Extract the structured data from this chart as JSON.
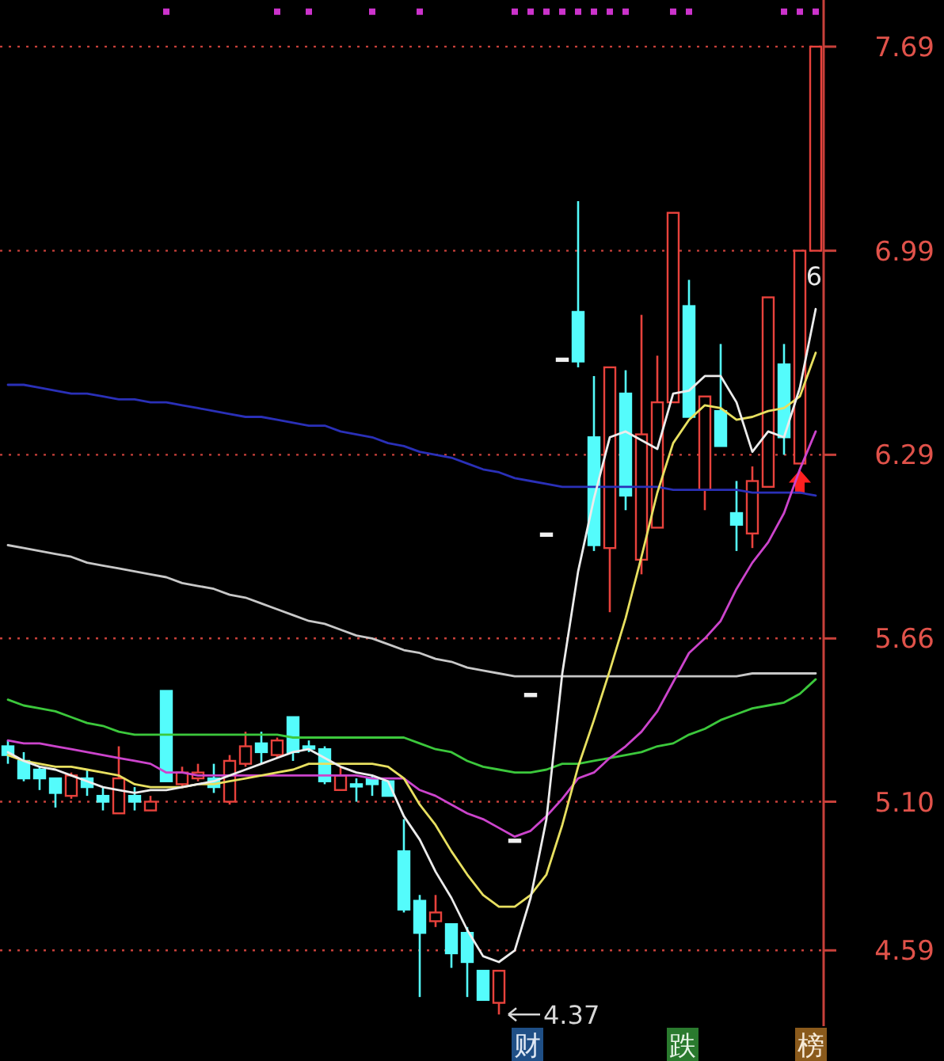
{
  "chart_data": {
    "type": "candlestick",
    "categories": [
      null,
      null,
      null,
      null,
      null,
      null,
      null,
      null,
      null,
      null,
      null,
      null,
      null,
      null,
      null,
      null,
      null,
      null,
      null,
      null,
      null,
      null,
      null,
      null,
      null,
      null,
      null,
      null,
      null,
      null,
      null,
      null,
      null,
      null,
      null,
      null,
      null,
      null,
      null,
      null,
      null,
      null,
      null,
      null,
      null,
      null,
      null,
      null,
      null,
      null,
      null,
      null
    ],
    "ohlc": [
      [
        5.29,
        5.31,
        5.23,
        5.26
      ],
      [
        5.24,
        5.27,
        5.17,
        5.18
      ],
      [
        5.21,
        5.22,
        5.14,
        5.18
      ],
      [
        5.18,
        5.18,
        5.08,
        5.13
      ],
      [
        5.12,
        5.2,
        5.11,
        5.19
      ],
      [
        5.18,
        5.21,
        5.12,
        5.15
      ],
      [
        5.12,
        5.15,
        5.07,
        5.1
      ],
      [
        5.06,
        5.29,
        5.06,
        5.18
      ],
      [
        5.12,
        5.15,
        5.07,
        5.1
      ],
      [
        5.07,
        5.12,
        5.07,
        5.1
      ],
      [
        5.48,
        5.48,
        5.17,
        5.17
      ],
      [
        5.16,
        5.22,
        5.15,
        5.2
      ],
      [
        5.18,
        5.23,
        5.17,
        5.2
      ],
      [
        5.18,
        5.23,
        5.13,
        5.15
      ],
      [
        5.1,
        5.26,
        5.09,
        5.24
      ],
      [
        5.23,
        5.34,
        5.22,
        5.29
      ],
      [
        5.3,
        5.34,
        5.23,
        5.27
      ],
      [
        5.26,
        5.32,
        5.25,
        5.31
      ],
      [
        5.39,
        5.39,
        5.24,
        5.27
      ],
      [
        5.29,
        5.31,
        5.27,
        5.29
      ],
      [
        5.28,
        5.29,
        5.16,
        5.17
      ],
      [
        5.14,
        5.22,
        5.14,
        5.19
      ],
      [
        5.16,
        5.18,
        5.1,
        5.16
      ],
      [
        5.18,
        5.19,
        5.12,
        5.16
      ],
      [
        5.17,
        5.17,
        5.12,
        5.12
      ],
      [
        4.93,
        5.04,
        4.72,
        4.73
      ],
      [
        4.76,
        4.78,
        4.43,
        4.65
      ],
      [
        4.69,
        4.78,
        4.67,
        4.72
      ],
      [
        4.68,
        4.68,
        4.53,
        4.58
      ],
      [
        4.65,
        4.67,
        4.43,
        4.55
      ],
      [
        4.52,
        4.52,
        4.42,
        4.42
      ],
      [
        4.41,
        4.52,
        4.37,
        4.52
      ],
      [
        4.97,
        4.97,
        4.97,
        4.97
      ],
      [
        5.47,
        5.47,
        5.47,
        5.47
      ],
      [
        6.02,
        6.02,
        6.02,
        6.02
      ],
      [
        6.62,
        6.62,
        6.62,
        6.62
      ],
      [
        6.78,
        7.16,
        6.59,
        6.61
      ],
      [
        6.35,
        6.56,
        5.96,
        5.98
      ],
      [
        5.97,
        6.59,
        5.75,
        6.59
      ],
      [
        6.5,
        6.58,
        6.1,
        6.15
      ],
      [
        5.93,
        6.77,
        5.88,
        6.36
      ],
      [
        6.04,
        6.63,
        6.04,
        6.47
      ],
      [
        6.47,
        7.12,
        6.47,
        7.12
      ],
      [
        6.8,
        6.89,
        6.42,
        6.42
      ],
      [
        6.17,
        6.49,
        6.1,
        6.49
      ],
      [
        6.44,
        6.67,
        6.32,
        6.32
      ],
      [
        6.09,
        6.2,
        5.96,
        6.05
      ],
      [
        6.02,
        6.25,
        5.97,
        6.2
      ],
      [
        6.18,
        6.83,
        6.18,
        6.83
      ],
      [
        6.6,
        6.67,
        6.29,
        6.35
      ],
      [
        6.26,
        6.99,
        6.26,
        6.99
      ],
      [
        6.99,
        7.69,
        6.99,
        7.69
      ]
    ],
    "colors": [
      "#54fcfc",
      "#54fcfc",
      "#54fcfc",
      "#54fcfc",
      "#e8423c",
      "#54fcfc",
      "#54fcfc",
      "#e8423c",
      "#54fcfc",
      "#e8423c",
      "#54fcfc",
      "#e8423c",
      "#e8423c",
      "#54fcfc",
      "#e8423c",
      "#e8423c",
      "#54fcfc",
      "#e8423c",
      "#54fcfc",
      "#54fcfc",
      "#54fcfc",
      "#e8423c",
      "#54fcfc",
      "#54fcfc",
      "#54fcfc",
      "#54fcfc",
      "#54fcfc",
      "#e8423c",
      "#54fcfc",
      "#54fcfc",
      "#54fcfc",
      "#e8423c",
      "#f0f0f0",
      "#f0f0f0",
      "#f0f0f0",
      "#f0f0f0",
      "#54fcfc",
      "#54fcfc",
      "#e8423c",
      "#54fcfc",
      "#e8423c",
      "#e8423c",
      "#e8423c",
      "#54fcfc",
      "#e8423c",
      "#54fcfc",
      "#54fcfc",
      "#e8423c",
      "#e8423c",
      "#54fcfc",
      "#e8423c",
      "#e8423c"
    ],
    "series": [
      {
        "type": "line",
        "color": "#c8c8c8",
        "values": [
          5.98,
          5.97,
          5.96,
          5.95,
          5.94,
          5.92,
          5.91,
          5.9,
          5.89,
          5.88,
          5.87,
          5.85,
          5.84,
          5.83,
          5.81,
          5.8,
          5.78,
          5.76,
          5.74,
          5.72,
          5.71,
          5.69,
          5.67,
          5.66,
          5.64,
          5.62,
          5.61,
          5.59,
          5.58,
          5.56,
          5.55,
          5.54,
          5.53,
          5.53,
          5.53,
          5.53,
          5.53,
          5.53,
          5.53,
          5.53,
          5.53,
          5.53,
          5.53,
          5.53,
          5.53,
          5.53,
          5.53,
          5.54,
          5.54,
          5.54,
          5.54,
          5.54
        ]
      },
      {
        "type": "line",
        "color": "#2a30b8",
        "values": [
          6.53,
          6.53,
          6.52,
          6.51,
          6.5,
          6.5,
          6.49,
          6.48,
          6.48,
          6.47,
          6.47,
          6.46,
          6.45,
          6.44,
          6.43,
          6.42,
          6.42,
          6.41,
          6.4,
          6.39,
          6.39,
          6.37,
          6.36,
          6.35,
          6.33,
          6.32,
          6.3,
          6.29,
          6.28,
          6.26,
          6.24,
          6.23,
          6.21,
          6.2,
          6.19,
          6.18,
          6.18,
          6.18,
          6.18,
          6.18,
          6.18,
          6.18,
          6.17,
          6.17,
          6.17,
          6.17,
          6.17,
          6.16,
          6.16,
          6.16,
          6.16,
          6.15
        ]
      },
      {
        "type": "line",
        "color": "#3cc83c",
        "values": [
          5.45,
          5.43,
          5.42,
          5.41,
          5.39,
          5.37,
          5.36,
          5.34,
          5.33,
          5.33,
          5.33,
          5.33,
          5.33,
          5.33,
          5.33,
          5.33,
          5.33,
          5.33,
          5.32,
          5.32,
          5.32,
          5.32,
          5.32,
          5.32,
          5.32,
          5.32,
          5.3,
          5.28,
          5.27,
          5.24,
          5.22,
          5.21,
          5.2,
          5.2,
          5.21,
          5.23,
          5.23,
          5.24,
          5.25,
          5.26,
          5.27,
          5.29,
          5.3,
          5.33,
          5.35,
          5.38,
          5.4,
          5.42,
          5.43,
          5.44,
          5.47,
          5.52
        ]
      },
      {
        "type": "line",
        "color": "#cc44cc",
        "values": [
          5.31,
          5.3,
          5.3,
          5.29,
          5.28,
          5.27,
          5.26,
          5.25,
          5.24,
          5.23,
          5.2,
          5.2,
          5.19,
          5.19,
          5.19,
          5.19,
          5.19,
          5.19,
          5.19,
          5.19,
          5.19,
          5.19,
          5.19,
          5.18,
          5.18,
          5.18,
          5.14,
          5.12,
          5.09,
          5.06,
          5.04,
          5.01,
          4.98,
          5.0,
          5.05,
          5.11,
          5.18,
          5.2,
          5.25,
          5.29,
          5.34,
          5.41,
          5.51,
          5.61,
          5.66,
          5.72,
          5.83,
          5.92,
          5.99,
          6.09,
          6.24,
          6.37
        ]
      },
      {
        "type": "line",
        "color": "#e8e060",
        "values": [
          5.26,
          5.24,
          5.23,
          5.22,
          5.22,
          5.21,
          5.2,
          5.19,
          5.16,
          5.15,
          5.15,
          5.15,
          5.16,
          5.16,
          5.17,
          5.18,
          5.19,
          5.2,
          5.21,
          5.23,
          5.23,
          5.23,
          5.23,
          5.23,
          5.22,
          5.18,
          5.09,
          5.02,
          4.93,
          4.85,
          4.78,
          4.74,
          4.74,
          4.78,
          4.85,
          5.02,
          5.22,
          5.38,
          5.55,
          5.73,
          5.94,
          6.16,
          6.33,
          6.41,
          6.46,
          6.45,
          6.41,
          6.42,
          6.44,
          6.45,
          6.49,
          6.64
        ]
      },
      {
        "type": "line",
        "color": "#ececec",
        "values": [
          5.27,
          5.24,
          5.22,
          5.21,
          5.19,
          5.17,
          5.15,
          5.14,
          5.13,
          5.14,
          5.14,
          5.15,
          5.16,
          5.17,
          5.19,
          5.21,
          5.23,
          5.25,
          5.27,
          5.28,
          5.25,
          5.22,
          5.2,
          5.19,
          5.17,
          5.05,
          4.97,
          4.86,
          4.77,
          4.66,
          4.57,
          4.55,
          4.59,
          4.77,
          5.04,
          5.54,
          5.89,
          6.14,
          6.35,
          6.37,
          6.34,
          6.31,
          6.5,
          6.51,
          6.56,
          6.56,
          6.47,
          6.3,
          6.37,
          6.35,
          6.52,
          6.79
        ]
      },
      {
        "type": "scatter",
        "marker": "square",
        "color": "#cc33cc",
        "values": [
          null,
          null,
          null,
          null,
          null,
          null,
          null,
          null,
          null,
          null,
          7.81,
          null,
          null,
          null,
          null,
          null,
          null,
          7.81,
          null,
          7.81,
          null,
          null,
          null,
          7.81,
          null,
          null,
          7.81,
          null,
          null,
          null,
          null,
          null,
          7.81,
          7.81,
          7.81,
          7.81,
          7.81,
          7.81,
          7.81,
          7.81,
          null,
          null,
          7.81,
          7.81,
          null,
          null,
          null,
          null,
          null,
          7.81,
          7.81,
          7.81
        ]
      }
    ],
    "ylim": [
      4.33,
      7.85
    ],
    "yticks": [
      4.59,
      {
        "value": 5.1,
        "label": "5.10"
      },
      5.66,
      6.29,
      6.99,
      7.69
    ],
    "grid": "y",
    "tick_labels": "y",
    "annotations": [
      "4.37",
      "6",
      "财",
      "跌",
      "榜"
    ]
  }
}
